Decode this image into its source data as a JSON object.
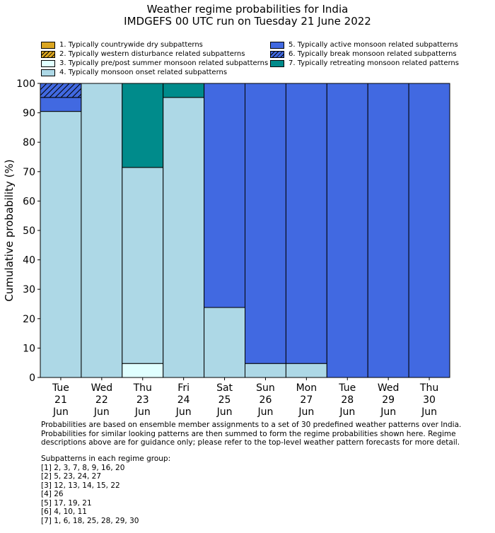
{
  "chart_data": {
    "type": "bar",
    "stacked": true,
    "title": "Weather regime probabilities for India",
    "subtitle": "IMDGEFS 00 UTC run on Tuesday 21 June 2022",
    "ylabel": "Cumulative probability (%)",
    "xlabel": "",
    "ylim": [
      0,
      100
    ],
    "yticks": [
      0,
      10,
      20,
      30,
      40,
      50,
      60,
      70,
      80,
      90,
      100
    ],
    "categories": [
      [
        "Tue",
        "21",
        "Jun"
      ],
      [
        "Wed",
        "22",
        "Jun"
      ],
      [
        "Thu",
        "23",
        "Jun"
      ],
      [
        "Fri",
        "24",
        "Jun"
      ],
      [
        "Sat",
        "25",
        "Jun"
      ],
      [
        "Sun",
        "26",
        "Jun"
      ],
      [
        "Mon",
        "27",
        "Jun"
      ],
      [
        "Tue",
        "28",
        "Jun"
      ],
      [
        "Wed",
        "29",
        "Jun"
      ],
      [
        "Thu",
        "30",
        "Jun"
      ]
    ],
    "series": [
      {
        "name": "1. Typically countrywide dry subpatterns",
        "color": "#daa520",
        "hatch": false,
        "values": [
          0,
          0,
          0,
          0,
          0,
          0,
          0,
          0,
          0,
          0
        ]
      },
      {
        "name": "2. Typically western disturbance related subpatterns",
        "color": "#daa520",
        "hatch": true,
        "values": [
          0,
          0,
          0,
          0,
          0,
          0,
          0,
          0,
          0,
          0
        ]
      },
      {
        "name": "3. Typically pre/post summer monsoon related subpatterns",
        "color": "#e0ffff",
        "hatch": false,
        "values": [
          0,
          0,
          4.76,
          0,
          0,
          0,
          0,
          0,
          0,
          0
        ]
      },
      {
        "name": "4. Typically monsoon onset related subpatterns",
        "color": "#add8e6",
        "hatch": false,
        "values": [
          90.48,
          100,
          66.67,
          95.24,
          23.81,
          4.76,
          4.76,
          0,
          0,
          0
        ]
      },
      {
        "name": "5. Typically active monsoon related subpatterns",
        "color": "#4169e1",
        "hatch": false,
        "values": [
          4.76,
          0,
          0,
          0,
          76.19,
          95.24,
          95.24,
          100,
          100,
          100
        ]
      },
      {
        "name": "6. Typically break monsoon related subpatterns",
        "color": "#4169e1",
        "hatch": true,
        "values": [
          4.76,
          0,
          0,
          0,
          0,
          0,
          0,
          0,
          0,
          0
        ]
      },
      {
        "name": "7. Typically retreating monsoon related patterns",
        "color": "#008b8b",
        "hatch": false,
        "values": [
          0,
          0,
          28.57,
          4.76,
          0,
          0,
          0,
          0,
          0,
          0
        ]
      }
    ],
    "legend_placement": "top"
  },
  "notes": {
    "para": "Probabilities are based on ensemble member assignments to a set of 30 predefined weather patterns over India.\nProbabilities for similar looking patterns are then summed to form the regime probabilities shown here. Regime\ndescriptions above are for guidance only; please refer to the top-level weather pattern forecasts for more detail.",
    "groups": "Subpatterns in each regime group:\n[1] 2, 3, 7, 8, 9, 16, 20\n[2] 5, 23, 24, 27\n[3] 12, 13, 14, 15, 22\n[4] 26\n[5] 17, 19, 21\n[6] 4, 10, 11\n[7] 1, 6, 18, 25, 28, 29, 30"
  }
}
